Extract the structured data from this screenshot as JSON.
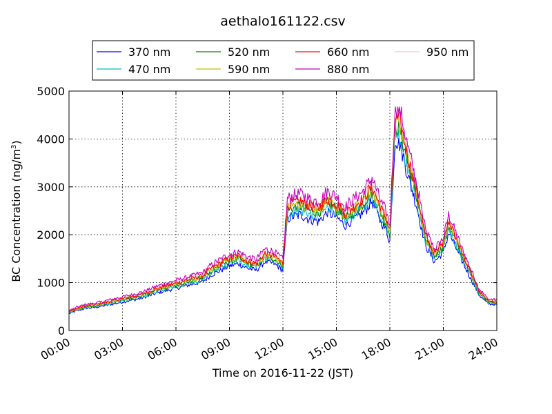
{
  "chart_data": {
    "type": "line",
    "title": "aethalo161122.csv",
    "xlabel": "Time on 2016-11-22 (JST)",
    "ylabel": "BC Concentration (ng/m",
    "ylabel_superscript": "3",
    "ylabel_close": ")",
    "xlim": [
      0,
      24
    ],
    "ylim": [
      0,
      5000
    ],
    "grid": true,
    "legend_position": "top",
    "x_ticks": [
      0,
      3,
      6,
      9,
      12,
      15,
      18,
      21,
      24
    ],
    "x_tick_labels": [
      "00:00",
      "03:00",
      "06:00",
      "09:00",
      "12:00",
      "15:00",
      "18:00",
      "21:00",
      "24:00"
    ],
    "y_ticks": [
      0,
      1000,
      2000,
      3000,
      4000,
      5000
    ],
    "y_tick_labels": [
      "0",
      "1000",
      "2000",
      "3000",
      "4000",
      "5000"
    ],
    "base_profile": {
      "x": [
        0,
        0.5,
        1,
        1.5,
        2,
        2.5,
        3,
        3.5,
        4,
        4.5,
        5,
        5.5,
        6,
        6.5,
        7,
        7.5,
        8,
        8.5,
        9,
        9.5,
        10,
        10.5,
        11,
        11.5,
        12,
        12.25,
        12.5,
        13,
        13.5,
        14,
        14.5,
        15,
        15.5,
        16,
        16.5,
        17,
        17.5,
        17.8,
        18,
        18.3,
        18.6,
        19,
        19.5,
        20,
        20.5,
        21,
        21.3,
        21.6,
        22,
        22.5,
        23,
        23.5,
        24
      ],
      "y": [
        380,
        450,
        500,
        520,
        560,
        600,
        640,
        680,
        720,
        780,
        850,
        900,
        950,
        1000,
        1050,
        1100,
        1250,
        1350,
        1450,
        1500,
        1400,
        1350,
        1550,
        1500,
        1350,
        2500,
        2550,
        2600,
        2500,
        2450,
        2650,
        2550,
        2350,
        2500,
        2650,
        2900,
        2450,
        2250,
        2000,
        4300,
        4150,
        3500,
        2800,
        1900,
        1550,
        1750,
        2200,
        1950,
        1600,
        1200,
        800,
        600,
        580
      ]
    },
    "series": [
      {
        "name": "370 nm",
        "color": "#0000ff",
        "factor": 0.93
      },
      {
        "name": "470 nm",
        "color": "#00bfbf",
        "factor": 0.97
      },
      {
        "name": "520 nm",
        "color": "#008000",
        "factor": 1.0
      },
      {
        "name": "590 nm",
        "color": "#bfbf00",
        "factor": 1.02
      },
      {
        "name": "660 nm",
        "color": "#ff0000",
        "factor": 1.04
      },
      {
        "name": "880 nm",
        "color": "#bf00bf",
        "factor": 1.1
      },
      {
        "name": "950 nm",
        "color": "#ffc0cb",
        "factor": 1.06
      }
    ]
  }
}
